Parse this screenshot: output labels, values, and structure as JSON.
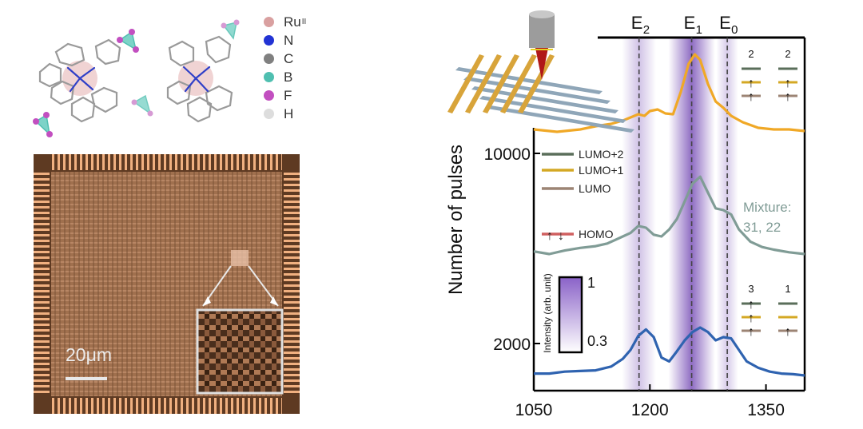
{
  "legend_elements": [
    {
      "symbol": "Ru",
      "sup": "II",
      "color": "#d9a0a0"
    },
    {
      "symbol": "N",
      "sup": "",
      "color": "#2233d4"
    },
    {
      "symbol": "C",
      "sup": "",
      "color": "#808080"
    },
    {
      "symbol": "B",
      "sup": "",
      "color": "#4fbfb0"
    },
    {
      "symbol": "F",
      "sup": "",
      "color": "#c24fc0"
    },
    {
      "symbol": "H",
      "sup": "",
      "color": "#dddddd"
    }
  ],
  "micrograph": {
    "scale_label": "20μm"
  },
  "chart_data": {
    "type": "line",
    "ylabel": "Number of pulses",
    "x_ticks": [
      1050,
      1200,
      1350
    ],
    "y_ticks": [
      "10000",
      "2000"
    ],
    "xlim": [
      1050,
      1400
    ],
    "energy_markers": [
      {
        "label": "E",
        "sub": "2",
        "x": 1186
      },
      {
        "label": "E",
        "sub": "1",
        "x": 1254
      },
      {
        "label": "E",
        "sub": "0",
        "x": 1300
      }
    ],
    "colorbar": {
      "title": "Intensity (arb. unit)",
      "max_label": "1",
      "min_label": "0.3"
    },
    "orbital_legend": [
      {
        "label": "LUMO+2",
        "color": "#5a6e5a"
      },
      {
        "label": "LUMO+1",
        "color": "#d4a824"
      },
      {
        "label": "LUMO",
        "color": "#9c8474"
      },
      {
        "label": "HOMO",
        "color": "#d06060"
      }
    ],
    "series": [
      {
        "color": "#f0a826",
        "x": [
          1050,
          1080,
          1110,
          1130,
          1150,
          1165,
          1175,
          1185,
          1193,
          1200,
          1210,
          1220,
          1230,
          1240,
          1250,
          1258,
          1265,
          1275,
          1285,
          1295,
          1305,
          1320,
          1340,
          1360,
          1380,
          1400
        ],
        "y": [
          0.03,
          0.0,
          0.03,
          0.07,
          0.1,
          0.14,
          0.18,
          0.22,
          0.2,
          0.26,
          0.28,
          0.23,
          0.22,
          0.5,
          0.85,
          0.97,
          0.9,
          0.6,
          0.38,
          0.3,
          0.2,
          0.12,
          0.05,
          0.03,
          0.03,
          0.01
        ]
      },
      {
        "color": "#809c96",
        "name": "Mixture:\n31, 22",
        "x": [
          1050,
          1070,
          1090,
          1110,
          1130,
          1145,
          1155,
          1165,
          1175,
          1185,
          1195,
          1205,
          1215,
          1225,
          1235,
          1245,
          1255,
          1265,
          1275,
          1285,
          1295,
          1305,
          1315,
          1330,
          1345,
          1360,
          1380,
          1400
        ],
        "y": [
          0.03,
          0.0,
          0.04,
          0.07,
          0.09,
          0.12,
          0.16,
          0.2,
          0.24,
          0.32,
          0.3,
          0.22,
          0.2,
          0.28,
          0.4,
          0.6,
          0.8,
          0.88,
          0.7,
          0.52,
          0.5,
          0.45,
          0.28,
          0.14,
          0.08,
          0.05,
          0.02,
          0.0
        ]
      },
      {
        "color": "#2f63b0",
        "x": [
          1050,
          1070,
          1090,
          1110,
          1130,
          1150,
          1165,
          1175,
          1185,
          1195,
          1205,
          1215,
          1225,
          1235,
          1245,
          1255,
          1265,
          1275,
          1285,
          1295,
          1305,
          1315,
          1325,
          1340,
          1355,
          1370,
          1385,
          1400
        ],
        "y": [
          0.03,
          0.03,
          0.06,
          0.07,
          0.08,
          0.14,
          0.26,
          0.4,
          0.62,
          0.72,
          0.6,
          0.28,
          0.22,
          0.38,
          0.55,
          0.68,
          0.75,
          0.68,
          0.55,
          0.6,
          0.58,
          0.4,
          0.22,
          0.12,
          0.06,
          0.03,
          0.02,
          0.0
        ]
      }
    ],
    "occupancy_labels": [
      {
        "value": "2",
        "group": "top-left"
      },
      {
        "value": "2",
        "group": "top-right"
      },
      {
        "value": "3",
        "group": "bottom-left"
      },
      {
        "value": "1",
        "group": "bottom-right"
      }
    ]
  }
}
